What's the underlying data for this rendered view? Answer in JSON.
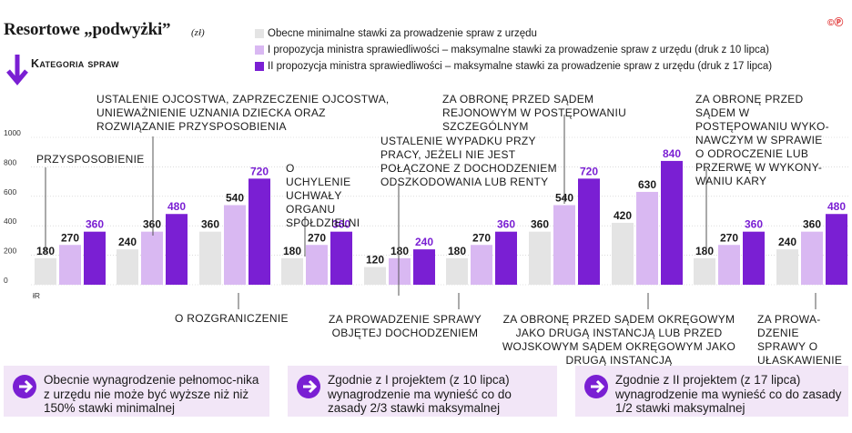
{
  "title": "Resortowe „podwyżki”",
  "unit": "(zł)",
  "copyright": "©Ⓟ",
  "category_label": "Kategoria spraw",
  "colors": {
    "s1": "#e4e4e4",
    "s2": "#d9b8f2",
    "s3": "#7a1fd3",
    "line": "#555555",
    "grid": "#c8c8c8"
  },
  "legend": [
    "Obecne minimalne stawki za prowadzenie spraw z urzędu",
    "I propozycja ministra sprawiedliwości – maksymalne stawki za prowadzenie spraw z urzędu (druk z 10 lipca)",
    "II propozycja ministra sprawiedliwości – maksymalne stawki za prowadzenie spraw z urzędu (druk z 17 lipca)"
  ],
  "annotations": {
    "a1": "Przysposobienie",
    "a2": "Ustalenie ojcostwa, zaprzeczenie ojcostwa, unieważnienie uznania dziecka oraz rozwiązanie przysposobienia",
    "a3": "O rozgraniczenie",
    "a4": "O uchylenie uchwały organu spółdzielni",
    "a5": "Ustalenie wypadku przy pracy, jeżeli nie jest połączone z dochodzeniem odszkodowania lub renty",
    "a6": "Za prowadzenie sprawy objętej dochodzeniem",
    "a7": "Za obronę przed sądem rejonowym w postępowaniu szczególnym",
    "a8": "Za obronę przed sądem okręgowym jako drugą instancją lub przed wojskowym sądem okręgowym jako drugą instancją",
    "a9": "Za obronę przed sądem w postępowaniu wyko-nawczym w sprawie o odroczenie lub przerwę w wykony-waniu kary",
    "a10": "Za prowa-dzenie sprawy o ułaskawienie"
  },
  "footer": [
    "Obecnie wynagrodzenie pełnomoc-nika z urzędu nie może być wyższe niż niż 150% stawki minimalnej",
    "Zgodnie z I projektem (z 10 lipca) wynagrodzenie ma wynieść co do zasady 2/3 stawki maksymalnej",
    "Zgodnie z II projektem (z 17 lipca) wynagrodzenie ma wynieść co do zasady  1/2 stawki maksymalnej"
  ],
  "chart_data": {
    "type": "bar",
    "categories": [
      "Przysposobienie",
      "Ustalenie ojcostwa...",
      "O rozgraniczenie",
      "O uchylenie uchwały organu spółdzielni",
      "Ustalenie wypadku przy pracy...",
      "Za prowadzenie sprawy objętej dochodzeniem",
      "Za obronę przed sądem okręgowym...",
      "Za obronę przed sądem rejonowym...",
      "Za obronę ... w postępowaniu wykonawczym",
      "Za prowadzenie sprawy o ułaskawienie"
    ],
    "series": [
      {
        "name": "Obecne minimalne stawki za prowadzenie spraw z urzędu",
        "values": [
          180,
          240,
          360,
          180,
          120,
          180,
          360,
          420,
          180,
          240
        ]
      },
      {
        "name": "I propozycja ministra sprawiedliwości – maksymalne stawki za prowadzenie spraw z urzędu (druk z 10 lipca)",
        "values": [
          270,
          360,
          540,
          270,
          180,
          270,
          540,
          630,
          270,
          360
        ]
      },
      {
        "name": "II propozycja ministra sprawiedliwości – maksymalne stawki za prowadzenie spraw z urzędu (druk z 17 lipca)",
        "values": [
          360,
          480,
          720,
          360,
          240,
          360,
          720,
          840,
          360,
          480
        ]
      }
    ],
    "y_ticks": [
      "0",
      "200",
      "400",
      "600",
      "800",
      "1000"
    ],
    "y_label": "łR",
    "ylim": [
      0,
      1000
    ],
    "grid": true
  }
}
